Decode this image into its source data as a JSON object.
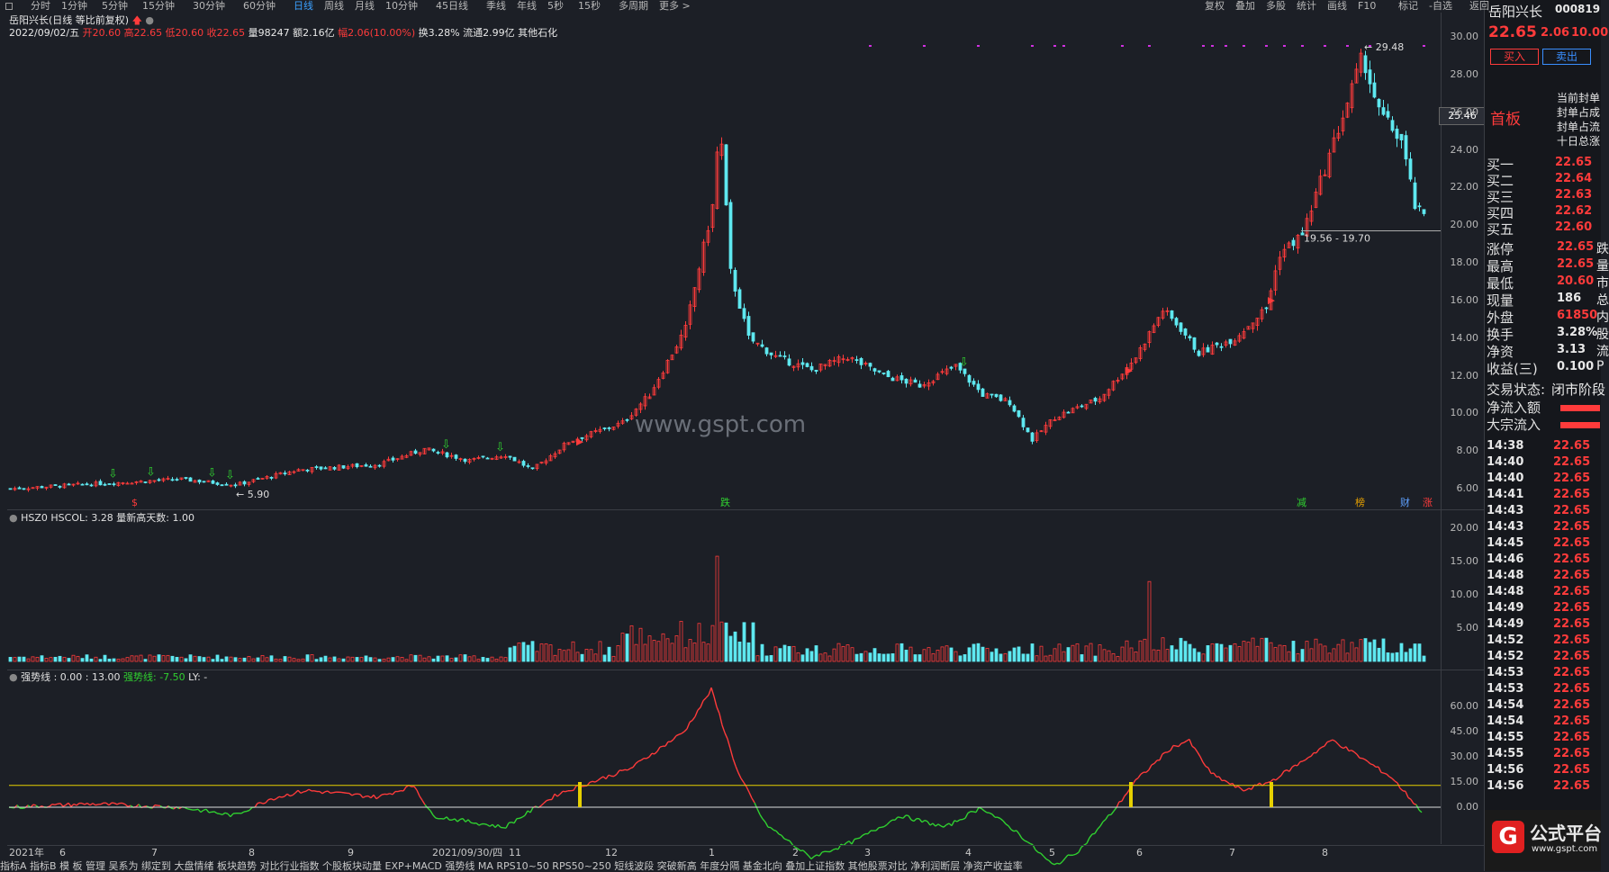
{
  "toolbar": {
    "items": [
      "分时",
      "1分钟",
      "5分钟",
      "15分钟",
      "30分钟",
      "60分钟",
      "日线",
      "周线",
      "月线",
      "10分钟",
      "45日线",
      "季线",
      "年线",
      "5秒",
      "15秒",
      "多周期",
      "更多 >"
    ],
    "active": "日线",
    "right_items": [
      "复权",
      "叠加",
      "多股",
      "统计",
      "画线",
      "F10",
      "标记",
      "-自选",
      "返回"
    ]
  },
  "stock": {
    "title": "岳阳兴长(日线 等比前复权)",
    "date": "2022/09/02/五",
    "open_label": "开",
    "open": "20.60",
    "high_label": "高",
    "high": "22.65",
    "low_label": "低",
    "low": "20.60",
    "close_label": "收",
    "close": "22.65",
    "volume": "量98247",
    "amount": "额2.16亿",
    "change": "幅2.06(10.00%)",
    "turnover": "换3.28%",
    "float": "流通2.99亿",
    "sector": "其他石化"
  },
  "main_chart": {
    "y_ticks": [
      "30.00",
      "28.00",
      "26.00",
      "24.00",
      "22.00",
      "20.00",
      "18.00",
      "16.00",
      "14.00",
      "12.00",
      "10.00",
      "8.00",
      "6.00"
    ],
    "price_tag": "25.46",
    "max_label": "29.48",
    "min_label": "5.90",
    "range_label": "19.56 - 19.70",
    "watermark": "www.gspt.com",
    "markers": [
      "$",
      "跌",
      "减",
      "榜",
      "财",
      "涨"
    ]
  },
  "vol_chart": {
    "header": "HSZ0  HSCOL: 3.28  量新高天数: 1.00",
    "y_ticks": [
      "20.00",
      "15.00",
      "10.00",
      "5.00"
    ]
  },
  "osc_chart": {
    "header_a": "强势线 : 0.00 : 13.00",
    "header_b": "强势线: -7.50",
    "header_c": "LY: -",
    "y_ticks": [
      "60.00",
      "45.00",
      "30.00",
      "15.00",
      "0.00"
    ]
  },
  "x_axis": {
    "labels": [
      "2021年",
      "6",
      "7",
      "8",
      "9",
      "2021/09/30/四",
      "11",
      "12",
      "1",
      "2",
      "3",
      "4",
      "5",
      "6",
      "7",
      "8"
    ]
  },
  "bottom_bar": "指标A  指标B  模 板  管理  吴系为  绑定到  大盘情绪  板块趋势  对比行业指数  个股板块动量  EXP+MACD  强势线  MA  RPS10~50  RPS50~250  短线波段  突破新高  年度分隔  基金北向  叠加上证指数  其他股票对比  净利润断层  净资产收益率",
  "right_panel": {
    "name": "岳阳兴长",
    "code": "000819",
    "price": "22.65",
    "change": "2.06",
    "pct": "10.00",
    "buy_btn": "买入",
    "sell_btn": "卖出",
    "tag": "首板",
    "notes": [
      "当前封单",
      "封单占成",
      "封单占流",
      "十日总涨"
    ],
    "bids": [
      {
        "label": "买一",
        "price": "22.65"
      },
      {
        "label": "买二",
        "price": "22.64"
      },
      {
        "label": "买三",
        "price": "22.63"
      },
      {
        "label": "买四",
        "price": "22.62"
      },
      {
        "label": "买五",
        "price": "22.60"
      }
    ],
    "stats": [
      {
        "label": "涨停",
        "value": "22.65",
        "extra": "跌"
      },
      {
        "label": "最高",
        "value": "22.65",
        "extra": "量"
      },
      {
        "label": "最低",
        "value": "20.60",
        "extra": "市"
      },
      {
        "label": "现量",
        "value": "186",
        "extra": "总"
      },
      {
        "label": "外盘",
        "value": "61850",
        "extra": "内"
      },
      {
        "label": "换手",
        "value": "3.28%",
        "extra": "股"
      },
      {
        "label": "净资",
        "value": "3.13",
        "extra": "流"
      },
      {
        "label": "收益(三)",
        "value": "0.100",
        "extra": "P"
      }
    ],
    "trade_status_label": "交易状态:",
    "trade_status": "闭市阶段",
    "inflow_label": "净流入额",
    "block_label": "大宗流入",
    "ticks": [
      {
        "t": "14:38",
        "p": "22.65"
      },
      {
        "t": "14:40",
        "p": "22.65"
      },
      {
        "t": "14:40",
        "p": "22.65"
      },
      {
        "t": "14:41",
        "p": "22.65"
      },
      {
        "t": "14:43",
        "p": "22.65"
      },
      {
        "t": "14:43",
        "p": "22.65"
      },
      {
        "t": "14:45",
        "p": "22.65"
      },
      {
        "t": "14:46",
        "p": "22.65"
      },
      {
        "t": "14:48",
        "p": "22.65"
      },
      {
        "t": "14:48",
        "p": "22.65"
      },
      {
        "t": "14:49",
        "p": "22.65"
      },
      {
        "t": "14:49",
        "p": "22.65"
      },
      {
        "t": "14:52",
        "p": "22.65"
      },
      {
        "t": "14:52",
        "p": "22.65"
      },
      {
        "t": "14:53",
        "p": "22.65"
      },
      {
        "t": "14:53",
        "p": "22.65"
      },
      {
        "t": "14:54",
        "p": "22.65"
      },
      {
        "t": "14:54",
        "p": "22.65"
      },
      {
        "t": "14:55",
        "p": "22.65"
      },
      {
        "t": "14:55",
        "p": "22.65"
      },
      {
        "t": "14:56",
        "p": "22.65"
      },
      {
        "t": "14:56",
        "p": "22.65"
      }
    ],
    "logo_text": "公式平台",
    "logo_url": "www.gspt.com"
  },
  "colors": {
    "up": "#ff3b3b",
    "down": "#5ee8f0",
    "yellow": "#e6d000",
    "bg": "#1c1f26"
  }
}
